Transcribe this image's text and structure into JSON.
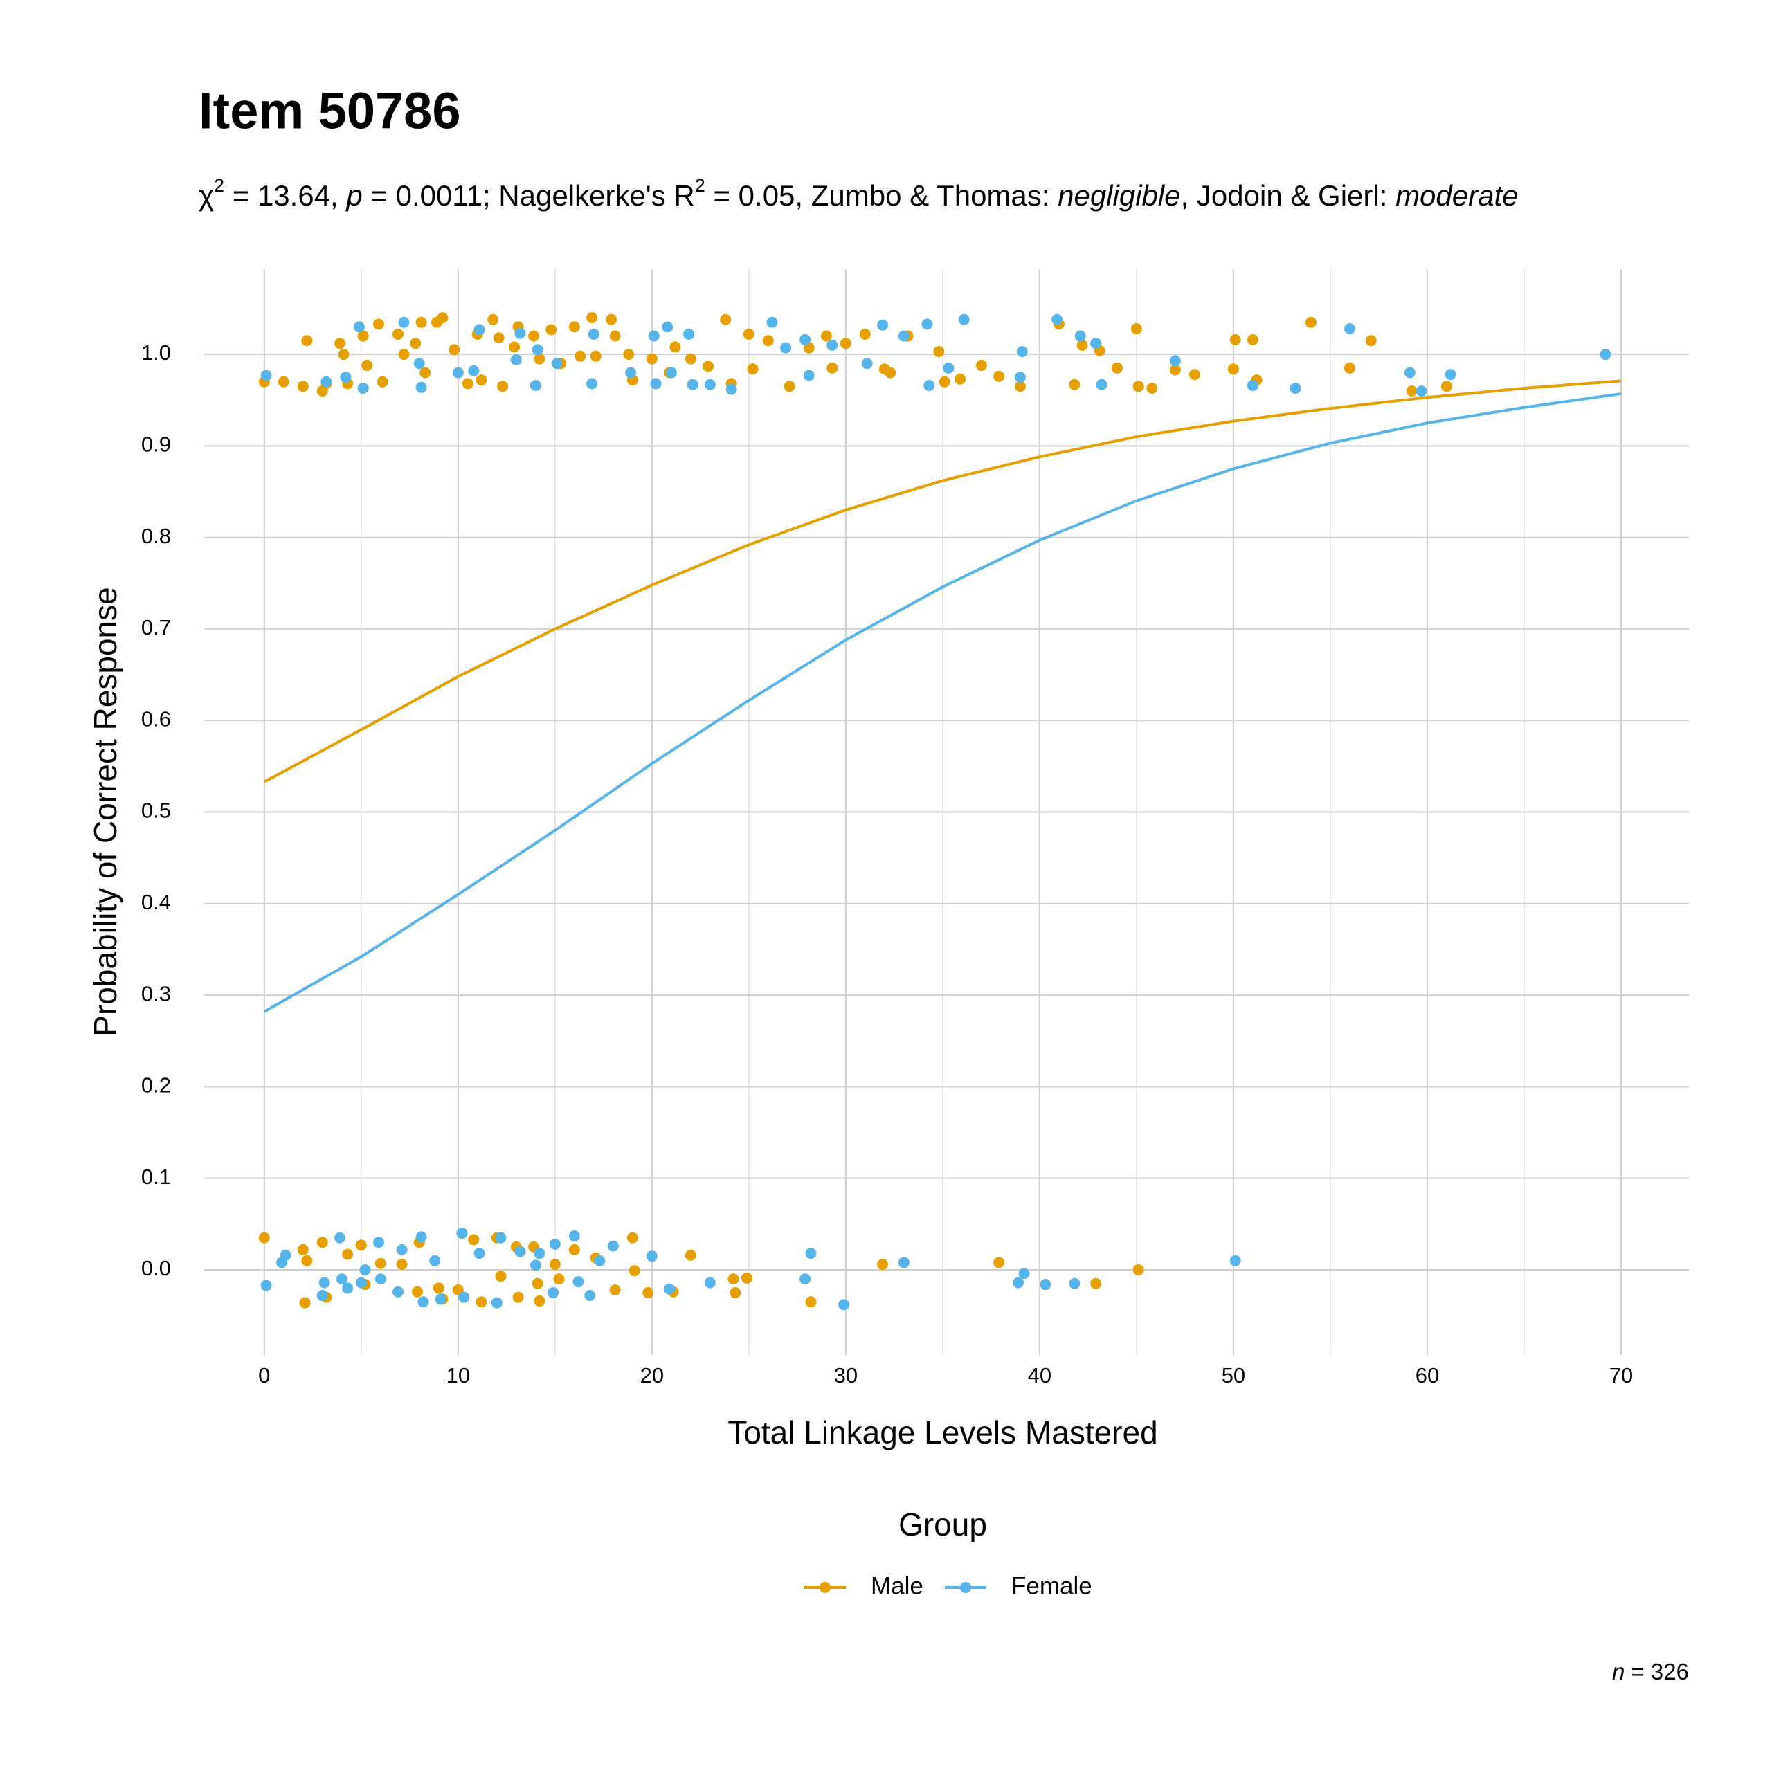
{
  "chart_data": {
    "type": "line",
    "title": "Item 50786",
    "subtitle": [
      "χ",
      "2",
      " = 13.64, ",
      "p",
      " = 0.0011; Nagelkerke's R",
      "2",
      " = 0.05, Zumbo & Thomas: ",
      "negligible",
      ", Jodoin & Gierl: ",
      "moderate"
    ],
    "x_label": "Total Linkage Levels Mastered",
    "y_label": "Probability of Correct Response",
    "legend_title": "Group",
    "legend_position": "bottom",
    "caption": [
      "n",
      " = 326"
    ],
    "xlim": [
      -3.1,
      73.5
    ],
    "ylim": [
      -0.093,
      1.093
    ],
    "xticks": [
      0,
      10,
      20,
      30,
      40,
      50,
      60,
      70
    ],
    "xminorticks": [
      5,
      15,
      25,
      35,
      45,
      55,
      65
    ],
    "yticks": [
      {
        "value": 0,
        "label": "0.0"
      },
      0.1,
      0.2,
      0.3,
      0.4,
      0.5,
      0.6,
      0.7,
      0.8,
      0.9,
      {
        "value": 1,
        "label": "1.0"
      }
    ],
    "grid": true,
    "series": [
      {
        "name": "Male",
        "color": "#E69F00",
        "x": [
          0,
          5,
          10,
          15,
          20,
          25,
          30,
          35,
          40,
          45,
          50,
          55,
          60,
          65,
          70
        ],
        "values": [
          0.533,
          0.59,
          0.648,
          0.7,
          0.748,
          0.792,
          0.83,
          0.862,
          0.888,
          0.91,
          0.927,
          0.941,
          0.953,
          0.963,
          0.971
        ],
        "points_x": [
          0,
          1,
          2,
          2.2,
          3,
          3.2,
          3.9,
          4.1,
          4.3,
          5.1,
          5.3,
          5.9,
          6.1,
          6.9,
          7.2,
          7.8,
          8.1,
          8.3,
          8.9,
          9.2,
          9.8,
          10.5,
          11,
          11.2,
          11.8,
          12.1,
          12.3,
          12.9,
          13.1,
          13.9,
          14.2,
          14.8,
          15.3,
          16,
          16.3,
          16.9,
          17.1,
          17.9,
          18.1,
          18.8,
          19,
          20,
          20.9,
          21.2,
          22,
          22.9,
          23.8,
          24.1,
          25,
          25.2,
          26,
          27.1,
          28.1,
          29,
          29.3,
          30,
          31,
          32,
          32.3,
          33.2,
          34.8,
          35.1,
          35.9,
          37,
          37.9,
          39,
          41,
          41.8,
          42.2,
          43.1,
          44,
          45,
          45.1,
          45.8,
          47,
          48,
          50,
          50.1,
          51,
          51.2,
          54,
          56,
          57.1,
          59.2,
          61,
          0,
          2,
          2.2,
          2.1,
          3,
          3.2,
          4.3,
          5,
          5.2,
          6,
          7.1,
          7.9,
          8,
          9,
          9.2,
          10,
          10.8,
          11.2,
          12,
          12.2,
          13,
          13.1,
          13.9,
          14.1,
          14.2,
          15,
          15.2,
          16,
          17.1,
          18.1,
          19,
          19.1,
          19.8,
          21.1,
          22,
          24.2,
          24.3,
          24.9,
          28.2,
          31.9,
          37.9,
          42.9,
          45.1
        ],
        "points_y": [
          0.97,
          0.97,
          0.965,
          1.015,
          0.96,
          0.968,
          1.012,
          1.0,
          0.968,
          1.02,
          0.988,
          1.033,
          0.97,
          1.022,
          1.0,
          1.012,
          1.035,
          0.98,
          1.035,
          1.04,
          1.005,
          0.968,
          1.022,
          0.972,
          1.038,
          1.018,
          0.965,
          1.008,
          1.03,
          1.02,
          0.995,
          1.027,
          0.99,
          1.03,
          0.998,
          1.04,
          0.998,
          1.038,
          1.02,
          1.0,
          0.972,
          0.995,
          0.98,
          1.008,
          0.995,
          0.987,
          1.038,
          0.968,
          1.022,
          0.984,
          1.015,
          0.965,
          1.007,
          1.02,
          0.985,
          1.012,
          1.022,
          0.984,
          0.98,
          1.02,
          1.003,
          0.97,
          0.973,
          0.988,
          0.976,
          0.965,
          1.033,
          0.967,
          1.01,
          1.004,
          0.985,
          1.028,
          0.965,
          0.963,
          0.983,
          0.978,
          0.984,
          1.016,
          1.016,
          0.972,
          1.035,
          0.985,
          1.015,
          0.96,
          0.965,
          0.035,
          0.022,
          0.01,
          -0.036,
          0.03,
          -0.03,
          0.017,
          0.027,
          -0.016,
          0.007,
          0.006,
          -0.024,
          0.03,
          -0.02,
          -0.032,
          -0.022,
          0.033,
          -0.035,
          0.035,
          -0.007,
          0.025,
          -0.03,
          0.025,
          -0.015,
          -0.034,
          0.006,
          -0.01,
          0.022,
          0.013,
          -0.022,
          0.035,
          -0.001,
          -0.025,
          -0.024,
          0.016,
          -0.01,
          -0.025,
          -0.009,
          -0.035,
          0.006,
          0.008,
          -0.015,
          0.0
        ]
      },
      {
        "name": "Female",
        "color": "#56B4E9",
        "x": [
          0,
          5,
          10,
          15,
          20,
          25,
          30,
          35,
          40,
          45,
          50,
          55,
          60,
          65,
          70
        ],
        "values": [
          0.282,
          0.342,
          0.41,
          0.48,
          0.553,
          0.622,
          0.688,
          0.746,
          0.797,
          0.84,
          0.875,
          0.903,
          0.925,
          0.942,
          0.957
        ],
        "points_x": [
          0.1,
          3.2,
          4.2,
          4.9,
          5.1,
          7.2,
          8,
          8.1,
          10,
          10.8,
          11.1,
          13,
          13.2,
          14,
          14.1,
          15.1,
          16.9,
          17,
          18.9,
          20.1,
          20.2,
          20.8,
          21,
          21.9,
          22.1,
          23,
          24.1,
          26.2,
          26.9,
          27.9,
          28.1,
          29.3,
          31.1,
          31.9,
          33,
          34.2,
          34.3,
          35.3,
          36.1,
          39,
          39.1,
          40.9,
          42.1,
          42.9,
          43.2,
          47,
          51,
          53.2,
          56,
          59.1,
          59.7,
          61.2,
          69.2,
          0.1,
          0.9,
          1.1,
          3.1,
          3,
          3.9,
          4,
          4.3,
          5,
          5.2,
          5.9,
          6,
          6.9,
          7.1,
          8.1,
          8.2,
          8.8,
          9.1,
          10.2,
          10.3,
          11.1,
          12,
          12.2,
          13.2,
          14,
          14.2,
          14.9,
          15,
          16,
          16.2,
          16.8,
          17.3,
          18,
          20,
          20.9,
          23,
          27.9,
          28.2,
          29.9,
          33,
          38.9,
          39.2,
          40.3,
          41.8,
          50.1
        ],
        "points_y": [
          0.977,
          0.97,
          0.975,
          1.03,
          0.963,
          1.035,
          0.99,
          0.964,
          0.98,
          0.982,
          1.027,
          0.994,
          1.023,
          0.966,
          1.005,
          0.99,
          0.968,
          1.022,
          0.98,
          1.02,
          0.968,
          1.03,
          0.98,
          1.022,
          0.967,
          0.967,
          0.962,
          1.035,
          1.007,
          1.016,
          0.977,
          1.01,
          0.99,
          1.032,
          1.02,
          1.033,
          0.966,
          0.985,
          1.038,
          0.975,
          1.003,
          1.038,
          1.02,
          1.012,
          0.967,
          0.993,
          0.966,
          0.963,
          1.028,
          0.98,
          0.96,
          0.978,
          1.0,
          -0.017,
          0.008,
          0.016,
          -0.014,
          -0.028,
          0.035,
          -0.01,
          -0.02,
          -0.014,
          0.0,
          0.03,
          -0.01,
          -0.024,
          0.022,
          0.036,
          -0.035,
          0.01,
          -0.032,
          0.04,
          -0.03,
          0.018,
          -0.036,
          0.035,
          0.02,
          0.005,
          0.018,
          -0.025,
          0.028,
          0.037,
          -0.013,
          -0.028,
          0.01,
          0.026,
          0.015,
          -0.021,
          -0.014,
          -0.01,
          0.018,
          -0.038,
          0.008,
          -0.014,
          -0.004,
          -0.016,
          -0.015,
          0.01
        ]
      }
    ]
  }
}
